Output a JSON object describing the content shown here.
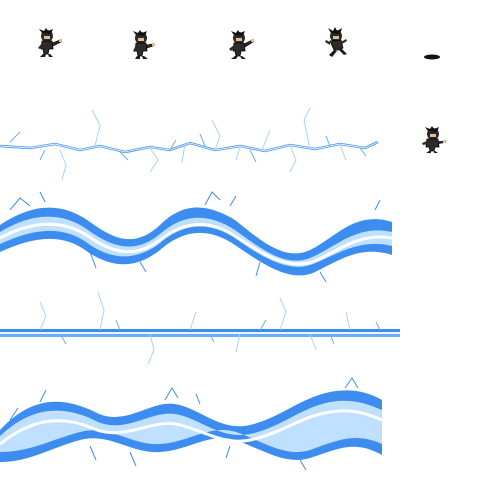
{
  "sprite_sheet": {
    "background": "#ffffff",
    "character_frames": [
      {
        "name": "ninja-frame-1",
        "pose": "standing-punch"
      },
      {
        "name": "ninja-frame-2",
        "pose": "standing-punch"
      },
      {
        "name": "ninja-frame-3",
        "pose": "standing-punch"
      },
      {
        "name": "ninja-frame-4",
        "pose": "leaping"
      },
      {
        "name": "ninja-frame-5",
        "pose": "shadow-only"
      },
      {
        "name": "ninja-frame-6",
        "pose": "casting"
      }
    ],
    "effect_strips": [
      {
        "name": "lightning-strip-thin",
        "style": "thin-crackle"
      },
      {
        "name": "lightning-strip-wave-1",
        "style": "thick-wave"
      },
      {
        "name": "lightning-strip-beam",
        "style": "straight-beam"
      },
      {
        "name": "lightning-strip-wave-2",
        "style": "thick-wave"
      }
    ],
    "colors": {
      "lightning_core": "#ffffff",
      "lightning_mid": "#bfe0ff",
      "lightning_edge": "#3d8df0",
      "lightning_dark": "#1f6fe0",
      "ninja_body": "#2b2b2b",
      "ninja_skin": "#e8b98a",
      "ninja_outline": "#000000"
    }
  }
}
